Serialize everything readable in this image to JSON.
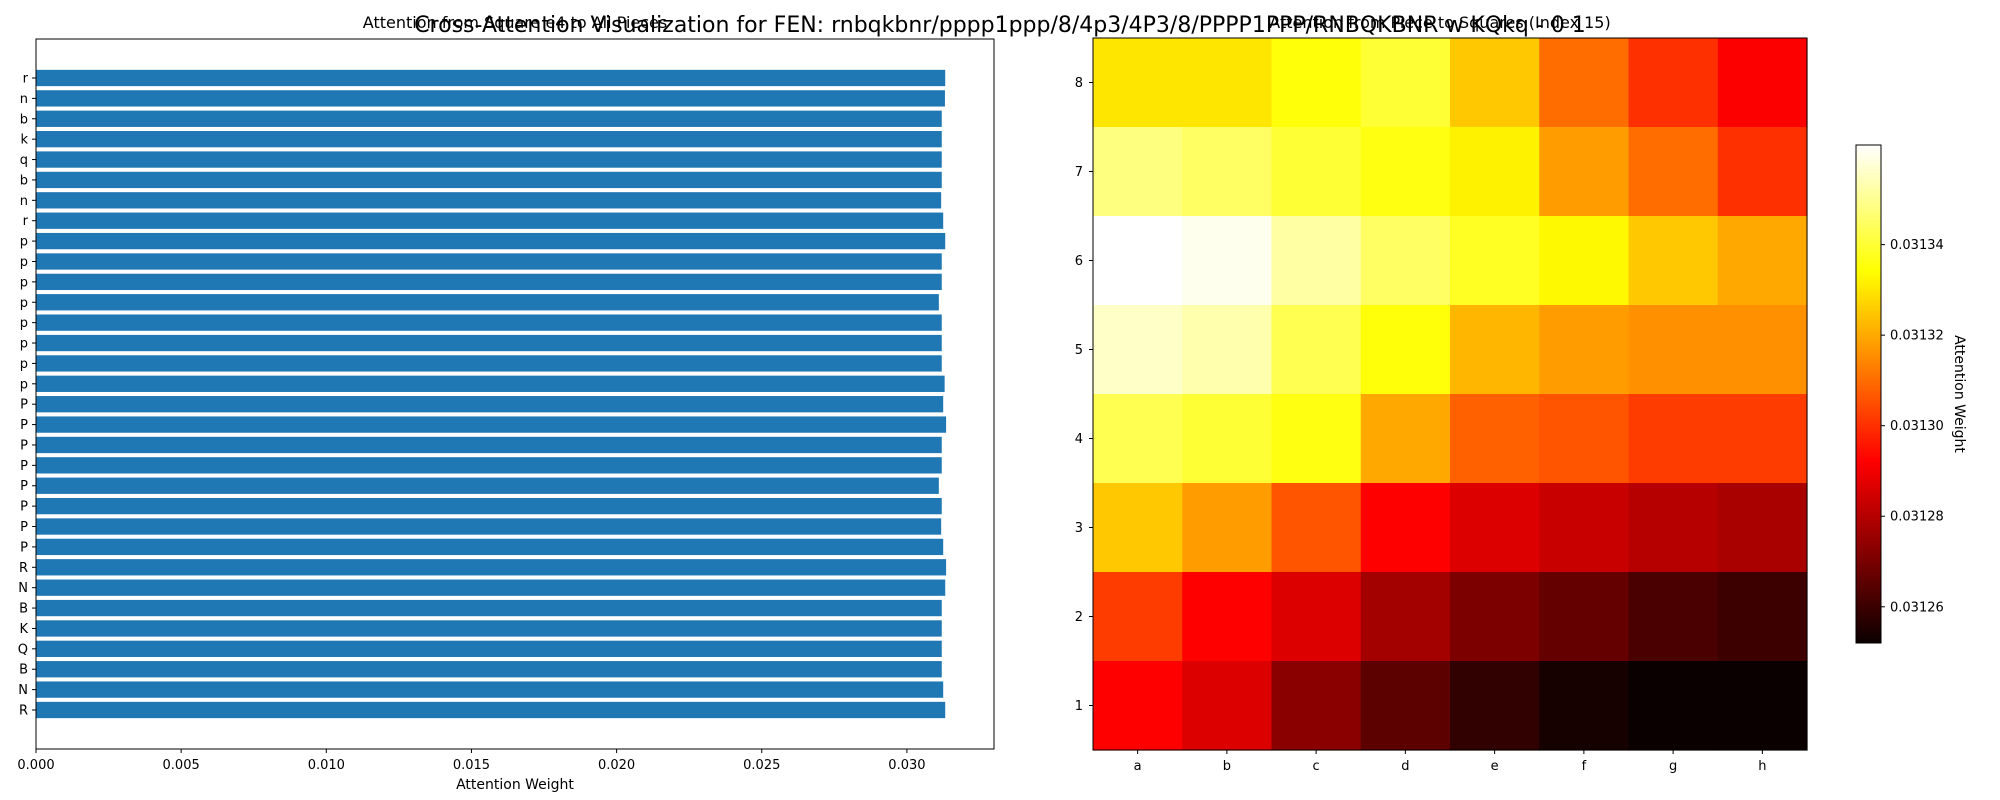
{
  "figure": {
    "title": "Cross-Attention Visualization for FEN: rnbqkbnr/pppp1ppp/8/4p3/4P3/8/PPPP1PPP/RNBQKBNR w KQkq - 0 1"
  },
  "chart_data": [
    {
      "type": "bar",
      "orientation": "horizontal",
      "title": "Attention from Square e4 to All Pieces",
      "xlabel": "Attention Weight",
      "ylabel": "",
      "categories": [
        "r",
        "n",
        "b",
        "k",
        "q",
        "b",
        "n",
        "r",
        "p",
        "p",
        "p",
        "p",
        "p",
        "p",
        "p",
        "p",
        "P",
        "P",
        "P",
        "P",
        "P",
        "P",
        "P",
        "P",
        "R",
        "N",
        "B",
        "K",
        "Q",
        "B",
        "N",
        "R"
      ],
      "values": [
        0.03132,
        0.03131,
        0.0312,
        0.0312,
        0.0312,
        0.0312,
        0.03118,
        0.03125,
        0.03132,
        0.0312,
        0.0312,
        0.0311,
        0.0312,
        0.0312,
        0.0312,
        0.0313,
        0.03125,
        0.03135,
        0.0312,
        0.0312,
        0.0311,
        0.0312,
        0.03118,
        0.03125,
        0.03135,
        0.03132,
        0.0312,
        0.0312,
        0.0312,
        0.0312,
        0.03125,
        0.03132
      ],
      "xlim": [
        0,
        0.033
      ],
      "xticks": [
        "0.000",
        "0.005",
        "0.010",
        "0.015",
        "0.020",
        "0.025",
        "0.030"
      ],
      "color": "#1f77b4"
    },
    {
      "type": "heatmap",
      "title": "Attention from Piece to Squares (Index 15)",
      "xlabel": "",
      "ylabel": "",
      "colorbar_label": "Attention Weight",
      "colormap": "hot",
      "x_categories": [
        "a",
        "b",
        "c",
        "d",
        "e",
        "f",
        "g",
        "h"
      ],
      "y_categories": [
        "8",
        "7",
        "6",
        "5",
        "4",
        "3",
        "2",
        "1"
      ],
      "values": [
        [
          0.03133,
          0.03133,
          0.031335,
          0.03134,
          0.031325,
          0.03131,
          0.0313,
          0.03129
        ],
        [
          0.031348,
          0.031345,
          0.03134,
          0.031336,
          0.031332,
          0.031318,
          0.03131,
          0.0313
        ],
        [
          0.031362,
          0.03136,
          0.031352,
          0.031345,
          0.031338,
          0.031333,
          0.031325,
          0.03132
        ],
        [
          0.031356,
          0.031353,
          0.031343,
          0.031335,
          0.031322,
          0.031318,
          0.031316,
          0.031316
        ],
        [
          0.031343,
          0.03134,
          0.031336,
          0.03132,
          0.031308,
          0.031306,
          0.031302,
          0.031302
        ],
        [
          0.031325,
          0.031318,
          0.031306,
          0.031292,
          0.031285,
          0.031282,
          0.031279,
          0.031277
        ],
        [
          0.031302,
          0.031292,
          0.031285,
          0.031276,
          0.03127,
          0.031266,
          0.031262,
          0.03126
        ],
        [
          0.031292,
          0.031285,
          0.031272,
          0.031265,
          0.031258,
          0.031254,
          0.031252,
          0.03125
        ]
      ],
      "vmin": 0.031252,
      "vmax": 0.031362,
      "colorbar_ticks": [
        "0.03126",
        "0.03128",
        "0.03130",
        "0.03132",
        "0.03134"
      ]
    }
  ]
}
